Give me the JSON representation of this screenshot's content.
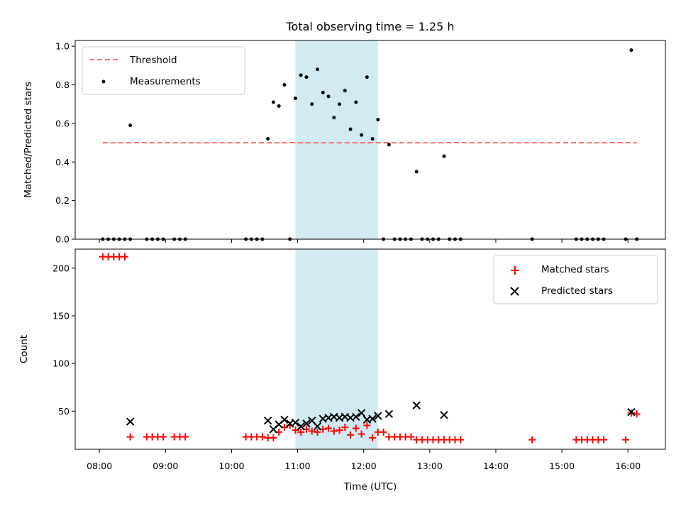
{
  "chart_data": [
    {
      "type": "scatter",
      "title": "Total observing time = 1.25 h",
      "xlabel": "",
      "ylabel": "Matched/Predicted stars",
      "ylim": [
        0.0,
        1.03
      ],
      "yticks": [
        "0.0",
        "0.2",
        "0.4",
        "0.6",
        "0.8",
        "1.0"
      ],
      "highlight_span": {
        "x0": "10:58",
        "x1": "12:13",
        "color": "#add8e6"
      },
      "legend": {
        "placement": "upper left",
        "entries": [
          "Threshold",
          "Measurements"
        ]
      },
      "threshold": {
        "name": "Threshold",
        "value": 0.5,
        "x0": "08:03",
        "x1": "16:08",
        "color": "#ff6b6b",
        "style": "dashed"
      },
      "series": [
        {
          "name": "Measurements",
          "color": "#000000",
          "points": [
            [
              "08:03",
              0
            ],
            [
              "08:08",
              0
            ],
            [
              "08:13",
              0
            ],
            [
              "08:18",
              0
            ],
            [
              "08:23",
              0
            ],
            [
              "08:28",
              0
            ],
            [
              "08:28",
              0.59
            ],
            [
              "08:43",
              0
            ],
            [
              "08:48",
              0
            ],
            [
              "08:53",
              0
            ],
            [
              "08:58",
              0
            ],
            [
              "09:08",
              0
            ],
            [
              "09:13",
              0
            ],
            [
              "09:18",
              0
            ],
            [
              "10:13",
              0
            ],
            [
              "10:18",
              0
            ],
            [
              "10:23",
              0
            ],
            [
              "10:28",
              0
            ],
            [
              "10:33",
              0.52
            ],
            [
              "10:38",
              0.71
            ],
            [
              "10:43",
              0.69
            ],
            [
              "10:48",
              0.8
            ],
            [
              "10:53",
              0
            ],
            [
              "10:58",
              0.73
            ],
            [
              "11:03",
              0.85
            ],
            [
              "11:08",
              0.84
            ],
            [
              "11:13",
              0.7
            ],
            [
              "11:18",
              0.88
            ],
            [
              "11:23",
              0.76
            ],
            [
              "11:28",
              0.74
            ],
            [
              "11:33",
              0.63
            ],
            [
              "11:38",
              0.7
            ],
            [
              "11:43",
              0.77
            ],
            [
              "11:48",
              0.57
            ],
            [
              "11:53",
              0.71
            ],
            [
              "11:58",
              0.54
            ],
            [
              "12:03",
              0.84
            ],
            [
              "12:08",
              0.52
            ],
            [
              "12:13",
              0.62
            ],
            [
              "12:18",
              0
            ],
            [
              "12:23",
              0.49
            ],
            [
              "12:28",
              0
            ],
            [
              "12:33",
              0
            ],
            [
              "12:38",
              0
            ],
            [
              "12:43",
              0
            ],
            [
              "12:48",
              0.35
            ],
            [
              "12:53",
              0
            ],
            [
              "12:58",
              0
            ],
            [
              "13:03",
              0
            ],
            [
              "13:08",
              0
            ],
            [
              "13:13",
              0.43
            ],
            [
              "13:18",
              0
            ],
            [
              "13:23",
              0
            ],
            [
              "13:28",
              0
            ],
            [
              "14:33",
              0
            ],
            [
              "15:13",
              0
            ],
            [
              "15:18",
              0
            ],
            [
              "15:23",
              0
            ],
            [
              "15:28",
              0
            ],
            [
              "15:33",
              0
            ],
            [
              "15:38",
              0
            ],
            [
              "15:58",
              0
            ],
            [
              "16:03",
              0.98
            ],
            [
              "16:08",
              0
            ]
          ]
        }
      ]
    },
    {
      "type": "scatter",
      "title": "",
      "xlabel": "Time (UTC)",
      "ylabel": "Count",
      "ylim": [
        10,
        220
      ],
      "yticks": [
        "50",
        "100",
        "150",
        "200"
      ],
      "xticks": [
        "08:00",
        "09:00",
        "10:00",
        "11:00",
        "12:00",
        "13:00",
        "14:00",
        "15:00",
        "16:00"
      ],
      "xlim": [
        "07:38",
        "16:34"
      ],
      "highlight_span": {
        "x0": "10:58",
        "x1": "12:13",
        "color": "#add8e6"
      },
      "legend": {
        "placement": "upper right",
        "entries": [
          "Matched stars",
          "Predicted stars"
        ]
      },
      "series": [
        {
          "name": "Matched stars",
          "marker": "+",
          "color": "#ff0000",
          "points": [
            [
              "08:03",
              212
            ],
            [
              "08:08",
              212
            ],
            [
              "08:13",
              212
            ],
            [
              "08:18",
              212
            ],
            [
              "08:23",
              212
            ],
            [
              "08:28",
              23
            ],
            [
              "08:43",
              23
            ],
            [
              "08:48",
              23
            ],
            [
              "08:53",
              23
            ],
            [
              "08:58",
              23
            ],
            [
              "09:08",
              23
            ],
            [
              "09:13",
              23
            ],
            [
              "09:18",
              23
            ],
            [
              "10:13",
              23
            ],
            [
              "10:18",
              23
            ],
            [
              "10:23",
              23
            ],
            [
              "10:28",
              23
            ],
            [
              "10:33",
              22
            ],
            [
              "10:38",
              22
            ],
            [
              "10:43",
              28
            ],
            [
              "10:48",
              33
            ],
            [
              "10:53",
              35
            ],
            [
              "10:58",
              30
            ],
            [
              "11:03",
              28
            ],
            [
              "11:08",
              31
            ],
            [
              "11:13",
              29
            ],
            [
              "11:18",
              28
            ],
            [
              "11:23",
              31
            ],
            [
              "11:28",
              32
            ],
            [
              "11:33",
              29
            ],
            [
              "11:38",
              30
            ],
            [
              "11:43",
              33
            ],
            [
              "11:48",
              25
            ],
            [
              "11:53",
              32
            ],
            [
              "11:58",
              26
            ],
            [
              "12:03",
              35
            ],
            [
              "12:08",
              22
            ],
            [
              "12:13",
              28
            ],
            [
              "12:18",
              28
            ],
            [
              "12:23",
              23
            ],
            [
              "12:28",
              23
            ],
            [
              "12:33",
              23
            ],
            [
              "12:38",
              23
            ],
            [
              "12:43",
              23
            ],
            [
              "12:48",
              20
            ],
            [
              "12:53",
              20
            ],
            [
              "12:58",
              20
            ],
            [
              "13:03",
              20
            ],
            [
              "13:08",
              20
            ],
            [
              "13:13",
              20
            ],
            [
              "13:18",
              20
            ],
            [
              "13:23",
              20
            ],
            [
              "13:28",
              20
            ],
            [
              "14:33",
              20
            ],
            [
              "15:13",
              20
            ],
            [
              "15:18",
              20
            ],
            [
              "15:23",
              20
            ],
            [
              "15:28",
              20
            ],
            [
              "15:33",
              20
            ],
            [
              "15:38",
              20
            ],
            [
              "15:58",
              20
            ],
            [
              "16:03",
              48
            ],
            [
              "16:08",
              47
            ]
          ]
        },
        {
          "name": "Predicted stars",
          "marker": "x",
          "color": "#000000",
          "points": [
            [
              "08:28",
              39
            ],
            [
              "10:33",
              40
            ],
            [
              "10:38",
              31
            ],
            [
              "10:43",
              36
            ],
            [
              "10:48",
              41
            ],
            [
              "10:53",
              37
            ],
            [
              "10:58",
              38
            ],
            [
              "11:03",
              34
            ],
            [
              "11:08",
              37
            ],
            [
              "11:13",
              40
            ],
            [
              "11:18",
              34
            ],
            [
              "11:23",
              42
            ],
            [
              "11:28",
              43
            ],
            [
              "11:33",
              44
            ],
            [
              "11:38",
              43
            ],
            [
              "11:43",
              44
            ],
            [
              "11:48",
              43
            ],
            [
              "11:53",
              44
            ],
            [
              "11:58",
              48
            ],
            [
              "12:03",
              41
            ],
            [
              "12:08",
              42
            ],
            [
              "12:13",
              45
            ],
            [
              "12:23",
              47
            ],
            [
              "12:48",
              56
            ],
            [
              "13:13",
              46
            ],
            [
              "16:03",
              49
            ]
          ]
        }
      ]
    }
  ]
}
